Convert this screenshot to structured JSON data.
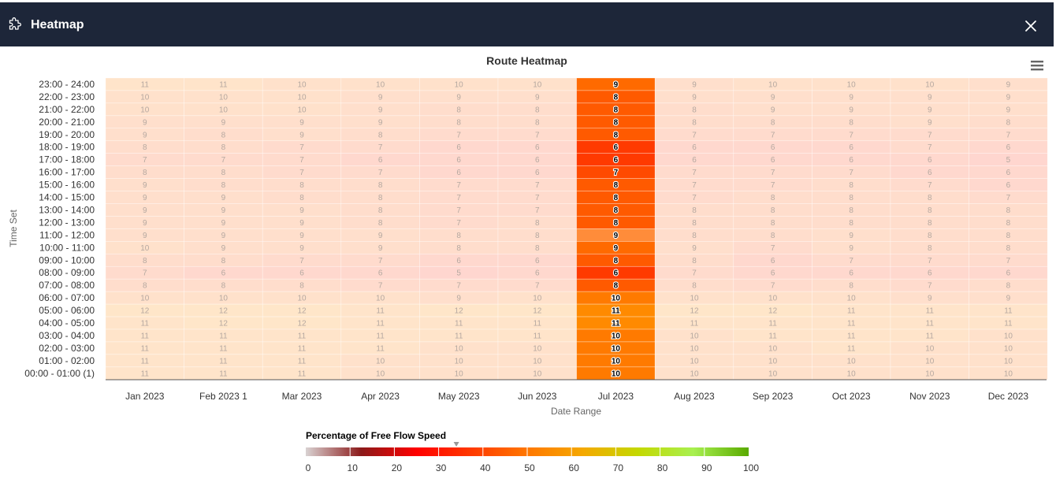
{
  "window": {
    "title": "Heatmap",
    "app_icon": "puzzle-icon",
    "close_icon": "close-icon",
    "menu_icon": "hamburger-menu-icon",
    "header_color": "#1d2639"
  },
  "chart_data": {
    "type": "heatmap",
    "title": "Route Heatmap",
    "xlabel": "Date Range",
    "ylabel": "Time Set",
    "categories": [
      "Jan 2023",
      "Feb 2023 1",
      "Mar 2023",
      "Apr 2023",
      "May 2023",
      "Jun 2023",
      "Jul 2023",
      "Aug 2023",
      "Sep 2023",
      "Oct 2023",
      "Nov 2023",
      "Dec 2023"
    ],
    "y_categories": [
      "23:00 - 24:00",
      "22:00 - 23:00",
      "21:00 - 22:00",
      "20:00 - 21:00",
      "19:00 - 20:00",
      "18:00 - 19:00",
      "17:00 - 18:00",
      "16:00 - 17:00",
      "15:00 - 16:00",
      "14:00 - 15:00",
      "13:00 - 14:00",
      "12:00 - 13:00",
      "11:00 - 12:00",
      "10:00 - 11:00",
      "09:00 - 10:00",
      "08:00 - 09:00",
      "07:00 - 08:00",
      "06:00 - 07:00",
      "05:00 - 06:00",
      "04:00 - 05:00",
      "03:00 - 04:00",
      "02:00 - 03:00",
      "01:00 - 02:00",
      "00:00 - 01:00 (1)"
    ],
    "values": [
      [
        11,
        11,
        10,
        10,
        10,
        10,
        9,
        9,
        10,
        10,
        10,
        9
      ],
      [
        10,
        10,
        10,
        9,
        9,
        9,
        8,
        9,
        9,
        9,
        9,
        9
      ],
      [
        10,
        10,
        10,
        9,
        8,
        8,
        8,
        8,
        9,
        9,
        9,
        9
      ],
      [
        9,
        9,
        9,
        9,
        8,
        8,
        8,
        8,
        8,
        8,
        9,
        8
      ],
      [
        9,
        8,
        9,
        8,
        7,
        7,
        8,
        7,
        7,
        7,
        7,
        7
      ],
      [
        8,
        8,
        7,
        7,
        6,
        6,
        6,
        6,
        6,
        6,
        7,
        6
      ],
      [
        7,
        7,
        7,
        6,
        6,
        6,
        6,
        6,
        6,
        6,
        6,
        5
      ],
      [
        8,
        8,
        7,
        7,
        6,
        6,
        7,
        7,
        7,
        7,
        6,
        6
      ],
      [
        9,
        8,
        8,
        8,
        7,
        7,
        8,
        7,
        7,
        8,
        7,
        6
      ],
      [
        9,
        9,
        8,
        8,
        7,
        7,
        8,
        7,
        8,
        8,
        8,
        7
      ],
      [
        9,
        9,
        9,
        8,
        7,
        7,
        8,
        8,
        8,
        8,
        8,
        8
      ],
      [
        9,
        9,
        9,
        8,
        7,
        8,
        8,
        8,
        8,
        8,
        8,
        8
      ],
      [
        9,
        9,
        9,
        9,
        8,
        8,
        9,
        8,
        8,
        9,
        8,
        8
      ],
      [
        10,
        9,
        9,
        9,
        8,
        8,
        9,
        9,
        7,
        9,
        8,
        8
      ],
      [
        8,
        8,
        7,
        7,
        6,
        6,
        8,
        8,
        6,
        7,
        7,
        7
      ],
      [
        7,
        6,
        6,
        6,
        5,
        6,
        6,
        7,
        6,
        6,
        6,
        6
      ],
      [
        8,
        8,
        8,
        7,
        7,
        7,
        8,
        8,
        7,
        8,
        7,
        8
      ],
      [
        10,
        10,
        10,
        10,
        9,
        10,
        10,
        10,
        10,
        10,
        9,
        9
      ],
      [
        12,
        12,
        12,
        11,
        12,
        12,
        11,
        12,
        12,
        11,
        11,
        11
      ],
      [
        11,
        12,
        12,
        11,
        11,
        11,
        11,
        11,
        11,
        11,
        11,
        11
      ],
      [
        11,
        11,
        11,
        11,
        11,
        11,
        10,
        10,
        11,
        11,
        11,
        10
      ],
      [
        11,
        11,
        11,
        11,
        10,
        10,
        10,
        10,
        10,
        11,
        10,
        10
      ],
      [
        11,
        11,
        11,
        10,
        10,
        10,
        10,
        10,
        10,
        10,
        10,
        10
      ],
      [
        11,
        11,
        11,
        10,
        10,
        10,
        10,
        10,
        10,
        10,
        10,
        10
      ]
    ],
    "highlight_column": "Jul 2023",
    "legend": {
      "title": "Percentage of Free Flow Speed",
      "ticks": [
        0,
        10,
        20,
        30,
        40,
        50,
        60,
        70,
        80,
        90,
        100
      ],
      "marker_value": 34,
      "placement": "bottom",
      "colors": [
        "#d9d2d2",
        "#8b1a1a",
        "#ff0000",
        "#ff3a00",
        "#ff7700",
        "#f5a800",
        "#c4d800",
        "#a8f050",
        "#5aaa00"
      ]
    }
  }
}
